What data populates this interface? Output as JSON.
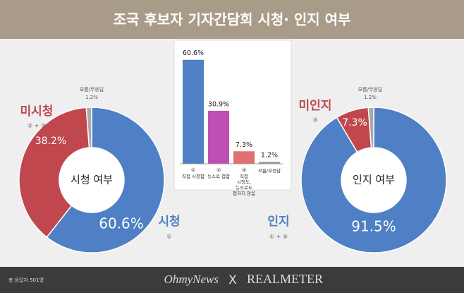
{
  "header": {
    "title": "조국 후보자 기자간담회 시청· 인지 여부"
  },
  "chart_data": [
    {
      "type": "pie",
      "center_label": "시청 여부",
      "categories": [
        "시청",
        "미시청",
        "모름/무응답"
      ],
      "subtitles": [
        "①",
        "② + ③",
        null
      ],
      "values": [
        60.6,
        38.2,
        1.2
      ],
      "value_labels": [
        "60.6%",
        "38.2%",
        "1.2%"
      ],
      "colors": [
        "#4f7fc4",
        "#c0474e",
        "#a9a9a9"
      ]
    },
    {
      "type": "bar",
      "markers": [
        "①",
        "②",
        "③",
        null
      ],
      "categories": [
        "직접 시청함",
        "뉴스로 접함",
        "직접 시청도, 뉴스로도 접하지 않음",
        "모름/무응답"
      ],
      "values": [
        60.6,
        30.9,
        7.3,
        1.2
      ],
      "value_labels": [
        "60.6%",
        "30.9%",
        "7.3%",
        "1.2%"
      ],
      "colors": [
        "#4f7fc4",
        "#c04fb3",
        "#e07070",
        "#a0a0a0"
      ]
    },
    {
      "type": "pie",
      "center_label": "인지 여부",
      "categories": [
        "인지",
        "미인지",
        "모름/무응답"
      ],
      "subtitles": [
        "① + ②",
        "③",
        null
      ],
      "values": [
        91.5,
        7.3,
        1.2
      ],
      "value_labels": [
        "91.5%",
        "7.3%",
        "1.2%"
      ],
      "colors": [
        "#4f7fc4",
        "#c0474e",
        "#a9a9a9"
      ]
    }
  ],
  "footer": {
    "note": "총 응답자 501명",
    "brand_left": "OhmyNews",
    "separator": "X",
    "brand_right": "REALMETER"
  }
}
